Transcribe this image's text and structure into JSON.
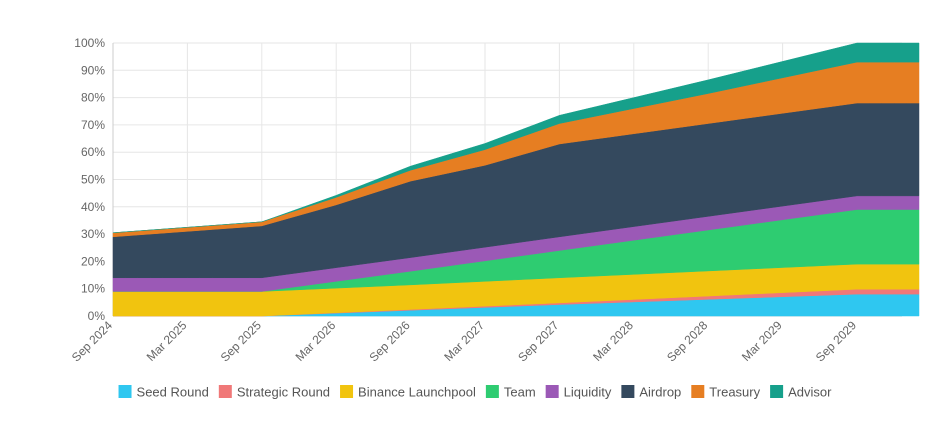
{
  "chart_data": {
    "type": "area",
    "stacked": true,
    "grid": true,
    "legend_position": "bottom",
    "ylim": [
      0,
      100
    ],
    "yunit": "%",
    "y_ticks": [
      0,
      10,
      20,
      30,
      40,
      50,
      60,
      70,
      80,
      90,
      100
    ],
    "y_tick_labels": [
      "0%",
      "10%",
      "20%",
      "30%",
      "40%",
      "50%",
      "60%",
      "70%",
      "80%",
      "90%",
      "100%"
    ],
    "x_ticks": [
      "Sep 2024",
      "Mar 2025",
      "Sep 2025",
      "Mar 2026",
      "Sep 2026",
      "Mar 2027",
      "Sep 2027",
      "Mar 2028",
      "Sep 2028",
      "Mar 2029",
      "Sep 2029"
    ],
    "x_start": "Sep 2024",
    "x_end": "Feb 2030",
    "series": [
      {
        "name": "Seed Round",
        "color": "#2fc7f0",
        "points": [
          [
            "Sep 2024",
            0
          ],
          [
            "Sep 2025",
            0
          ],
          [
            "Sep 2027",
            4.2
          ],
          [
            "Sep 2029",
            8
          ],
          [
            "Feb 2030",
            8
          ]
        ]
      },
      {
        "name": "Strategic Round",
        "color": "#f07878",
        "points": [
          [
            "Sep 2024",
            0
          ],
          [
            "Sep 2025",
            0
          ],
          [
            "Sep 2027",
            0.6
          ],
          [
            "Sep 2029",
            1.8
          ],
          [
            "Feb 2030",
            1.8
          ]
        ]
      },
      {
        "name": "Binance Launchpool",
        "color": "#f1c40f",
        "points": [
          [
            "Sep 2024",
            9
          ],
          [
            "Sep 2025",
            9
          ],
          [
            "Sep 2026",
            9
          ],
          [
            "Sep 2027",
            9.2
          ],
          [
            "Sep 2029",
            9.2
          ],
          [
            "Feb 2030",
            9.2
          ]
        ]
      },
      {
        "name": "Team",
        "color": "#2ecc71",
        "points": [
          [
            "Sep 2024",
            0
          ],
          [
            "Sep 2025",
            0
          ],
          [
            "Sep 2026",
            5
          ],
          [
            "Sep 2027",
            10
          ],
          [
            "Sep 2029",
            20
          ],
          [
            "Feb 2030",
            20
          ]
        ]
      },
      {
        "name": "Liquidity",
        "color": "#9b59b6",
        "points": [
          [
            "Sep 2024",
            5
          ],
          [
            "Sep 2025",
            5
          ],
          [
            "Sep 2027",
            5
          ],
          [
            "Sep 2029",
            5
          ],
          [
            "Feb 2030",
            5
          ]
        ]
      },
      {
        "name": "Airdrop",
        "color": "#34495e",
        "points": [
          [
            "Sep 2024",
            15
          ],
          [
            "Dec 2024",
            16
          ],
          [
            "Mar 2025",
            17
          ],
          [
            "Jun 2025",
            18
          ],
          [
            "Sep 2025",
            19
          ],
          [
            "Mar 2026",
            23
          ],
          [
            "Sep 2026",
            28
          ],
          [
            "Mar 2027",
            30
          ],
          [
            "Sep 2027",
            34
          ],
          [
            "Sep 2028",
            34
          ],
          [
            "Sep 2029",
            34
          ],
          [
            "Feb 2030",
            34
          ]
        ]
      },
      {
        "name": "Treasury",
        "color": "#e67e22",
        "points": [
          [
            "Sep 2024",
            1.5
          ],
          [
            "Sep 2025",
            1.5
          ],
          [
            "Sep 2026",
            4
          ],
          [
            "Sep 2027",
            7.5
          ],
          [
            "Sep 2028",
            11
          ],
          [
            "Sep 2029",
            15
          ],
          [
            "Feb 2030",
            15
          ]
        ]
      },
      {
        "name": "Advisor",
        "color": "#16a08b",
        "points": [
          [
            "Sep 2024",
            0
          ],
          [
            "Sep 2025",
            0
          ],
          [
            "Sep 2026",
            1.5
          ],
          [
            "Sep 2027",
            3
          ],
          [
            "Sep 2028",
            5
          ],
          [
            "Sep 2029",
            7
          ],
          [
            "Feb 2030",
            7
          ]
        ]
      }
    ]
  }
}
